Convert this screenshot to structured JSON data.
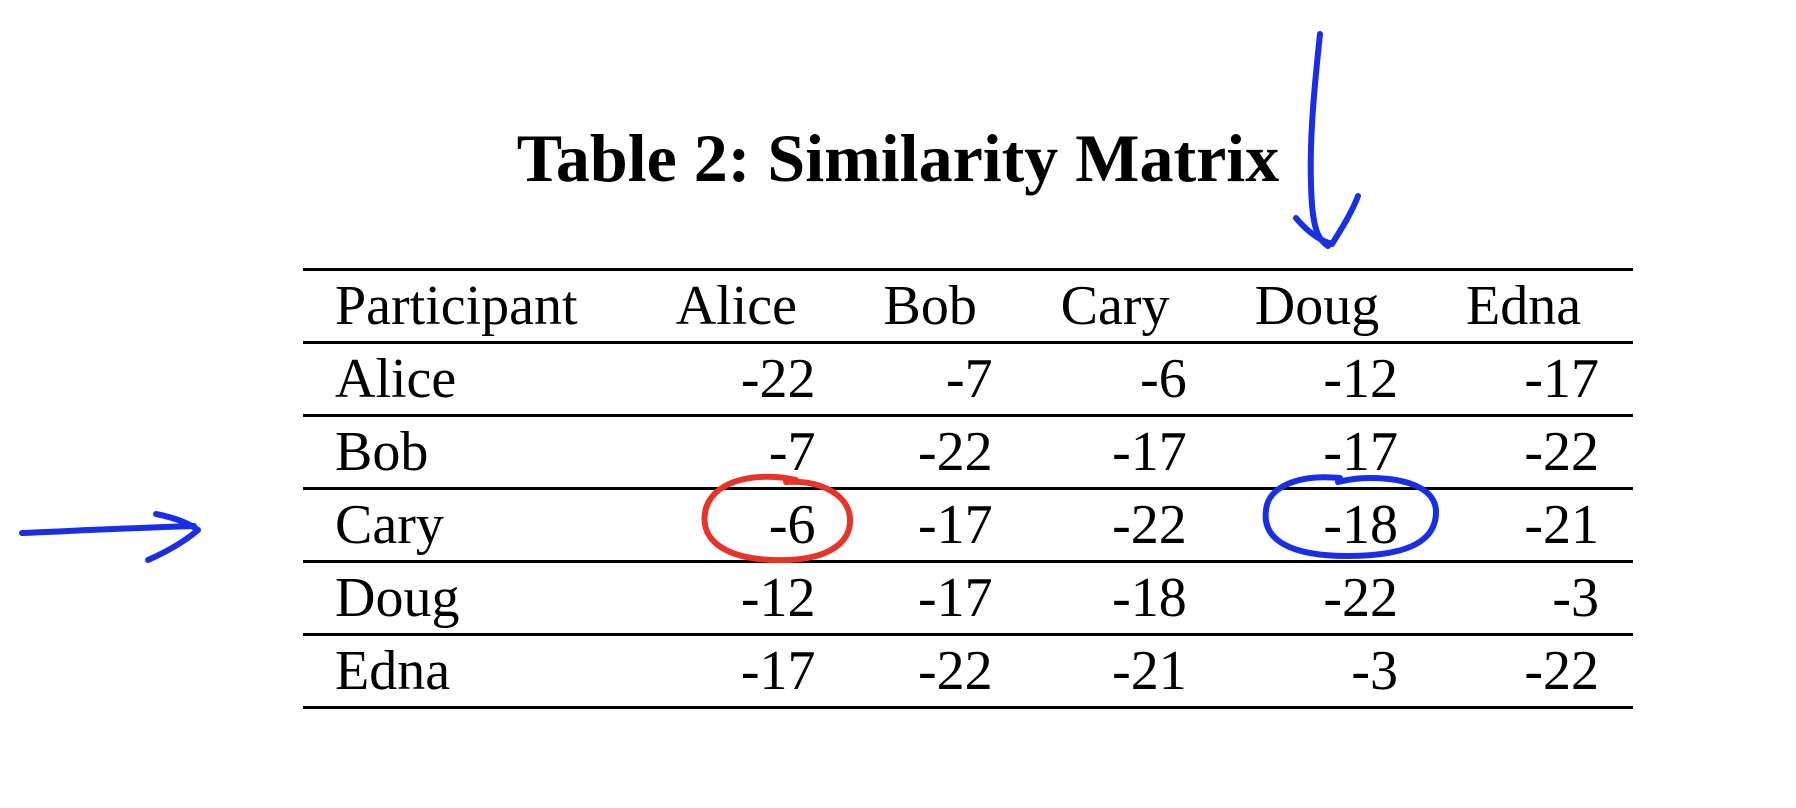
{
  "title": "Table 2: Similarity Matrix",
  "table": {
    "corner_header": "Participant",
    "columns": [
      "Alice",
      "Bob",
      "Cary",
      "Doug",
      "Edna"
    ],
    "rows": [
      {
        "label": "Alice",
        "values": [
          "-22",
          "-7",
          "-6",
          "-12",
          "-17"
        ]
      },
      {
        "label": "Bob",
        "values": [
          "-7",
          "-22",
          "-17",
          "-17",
          "-22"
        ]
      },
      {
        "label": "Cary",
        "values": [
          "-6",
          "-17",
          "-22",
          "-18",
          "-21"
        ]
      },
      {
        "label": "Doug",
        "values": [
          "-12",
          "-17",
          "-18",
          "-22",
          "-3"
        ]
      },
      {
        "label": "Edna",
        "values": [
          "-17",
          "-22",
          "-21",
          "-3",
          "-22"
        ]
      }
    ]
  },
  "annotations": {
    "highlighted_cells": [
      {
        "row": "Cary",
        "column": "Alice",
        "ink_color": "#e8332a"
      },
      {
        "row": "Cary",
        "column": "Doug",
        "ink_color": "#1a2ee6"
      }
    ],
    "arrows": [
      {
        "points_to": "column Doug",
        "ink_color": "#1a2ee6"
      },
      {
        "points_to": "row Cary",
        "ink_color": "#1a2ee6"
      }
    ]
  }
}
